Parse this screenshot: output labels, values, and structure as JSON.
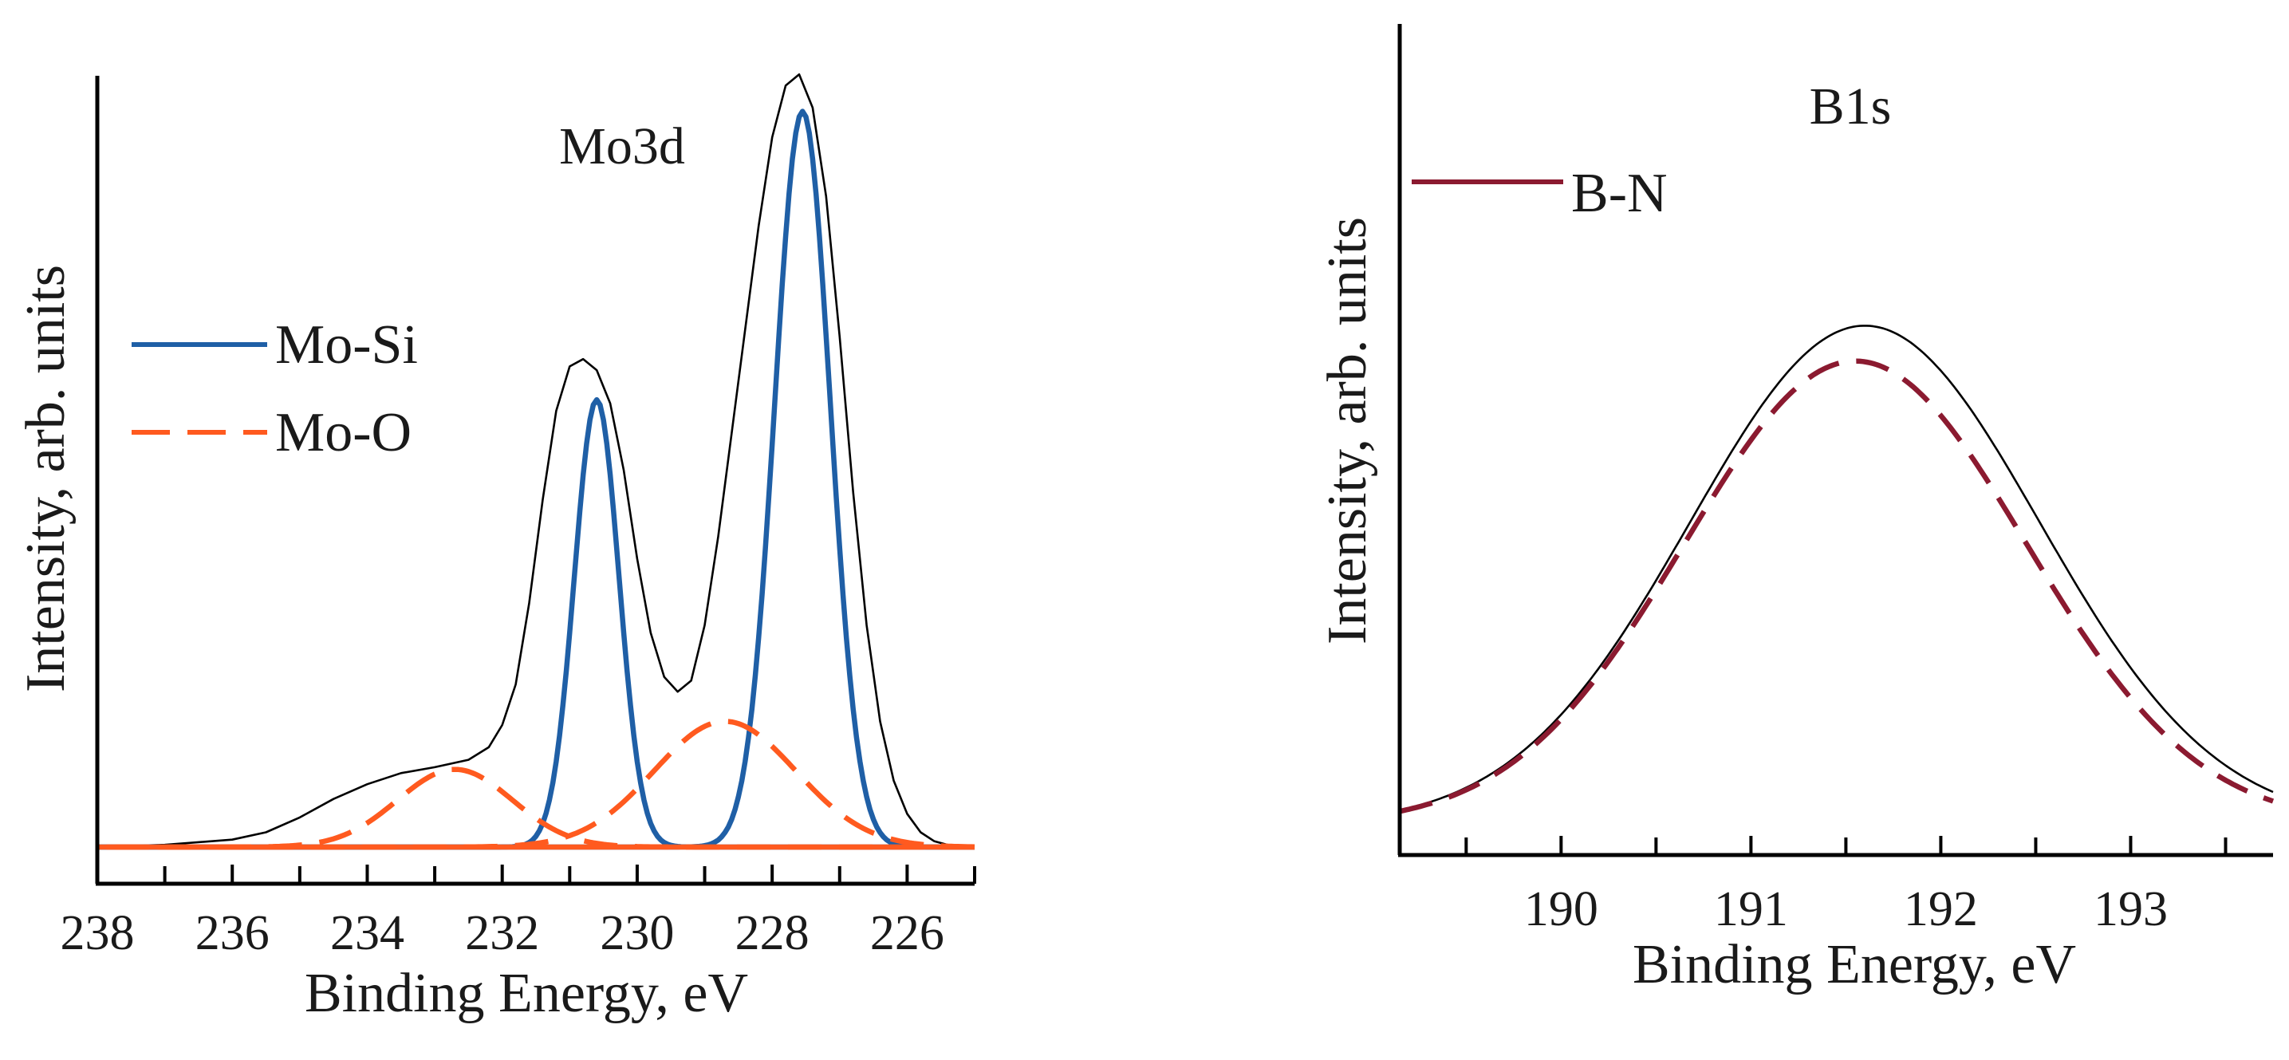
{
  "chart_data": [
    {
      "type": "line",
      "title": "Mo3d",
      "xlabel": "Binding Energy, eV",
      "ylabel": "Intensity, arb. units",
      "xlim": [
        238,
        225
      ],
      "ylim": [
        0,
        1
      ],
      "x_reversed": true,
      "xticks": [
        238,
        236,
        234,
        232,
        230,
        228,
        226
      ],
      "xtick_labels": [
        "238",
        "236",
        "234",
        "232",
        "230",
        "228",
        "226"
      ],
      "minor_tick_step": 1,
      "legend_position": "upper-left",
      "legend": [
        {
          "label": "Mo-Si",
          "color": "#1f5fa6",
          "style": "solid"
        },
        {
          "label": "Mo-O",
          "color": "#ff5a1f",
          "style": "dashed"
        }
      ],
      "series": [
        {
          "name": "Envelope",
          "color": "#000000",
          "style": "thin",
          "x": [
            238,
            237,
            236,
            235.5,
            235,
            234.5,
            234,
            233.5,
            233,
            232.5,
            232.2,
            232,
            231.8,
            231.6,
            231.4,
            231.2,
            231,
            230.8,
            230.6,
            230.4,
            230.2,
            230,
            229.8,
            229.6,
            229.4,
            229.2,
            229,
            228.8,
            228.6,
            228.4,
            228.2,
            228,
            227.8,
            227.6,
            227.4,
            227.2,
            227,
            226.8,
            226.6,
            226.4,
            226.2,
            226,
            225.8,
            225.6,
            225.4,
            225.2,
            225
          ],
          "y": [
            0.0,
            0.003,
            0.01,
            0.02,
            0.04,
            0.065,
            0.085,
            0.1,
            0.108,
            0.118,
            0.135,
            0.165,
            0.22,
            0.33,
            0.47,
            0.59,
            0.65,
            0.66,
            0.645,
            0.6,
            0.51,
            0.39,
            0.29,
            0.23,
            0.21,
            0.225,
            0.3,
            0.42,
            0.56,
            0.7,
            0.84,
            0.96,
            1.03,
            1.045,
            1.0,
            0.88,
            0.69,
            0.48,
            0.3,
            0.17,
            0.09,
            0.045,
            0.02,
            0.008,
            0.003,
            0.001,
            0.0
          ]
        },
        {
          "name": "Mo-Si",
          "color": "#1f5fa6",
          "style": "solid",
          "components": [
            {
              "center": 230.6,
              "height": 0.605,
              "sigma": 0.33
            },
            {
              "center": 227.55,
              "height": 0.995,
              "sigma": 0.41
            }
          ]
        },
        {
          "name": "Mo-O",
          "color": "#ff5a1f",
          "style": "dashed",
          "components": [
            {
              "center": 232.7,
              "height": 0.105,
              "sigma": 0.85
            },
            {
              "center": 228.7,
              "height": 0.17,
              "sigma": 1.05
            }
          ]
        },
        {
          "name": "Baseline",
          "color": "#ff5a1f",
          "style": "solid",
          "x": [
            238,
            225
          ],
          "y": [
            0,
            0
          ]
        }
      ]
    },
    {
      "type": "line",
      "title": "B1s",
      "xlabel": "Binding Energy, eV",
      "ylabel": "Intensity, arb. units",
      "xlim": [
        189.15,
        193.75
      ],
      "ylim": [
        0,
        1
      ],
      "x_reversed": false,
      "xticks": [
        190,
        191,
        192,
        193
      ],
      "xtick_labels": [
        "190",
        "191",
        "192",
        "193"
      ],
      "minor_tick_step": 0.5,
      "legend_position": "upper-left",
      "legend": [
        {
          "label": "B-N",
          "color": "#8b1a30",
          "style": "solid"
        }
      ],
      "series": [
        {
          "name": "Envelope",
          "color": "#000000",
          "style": "thin",
          "components": [
            {
              "center": 191.6,
              "height": 0.775,
              "sigma": 0.92,
              "offset": 0.035
            }
          ]
        },
        {
          "name": "B-N",
          "color": "#8b1a30",
          "style": "dashed",
          "components": [
            {
              "center": 191.55,
              "height": 0.72,
              "sigma": 0.9,
              "offset": 0.035
            }
          ]
        }
      ]
    }
  ]
}
